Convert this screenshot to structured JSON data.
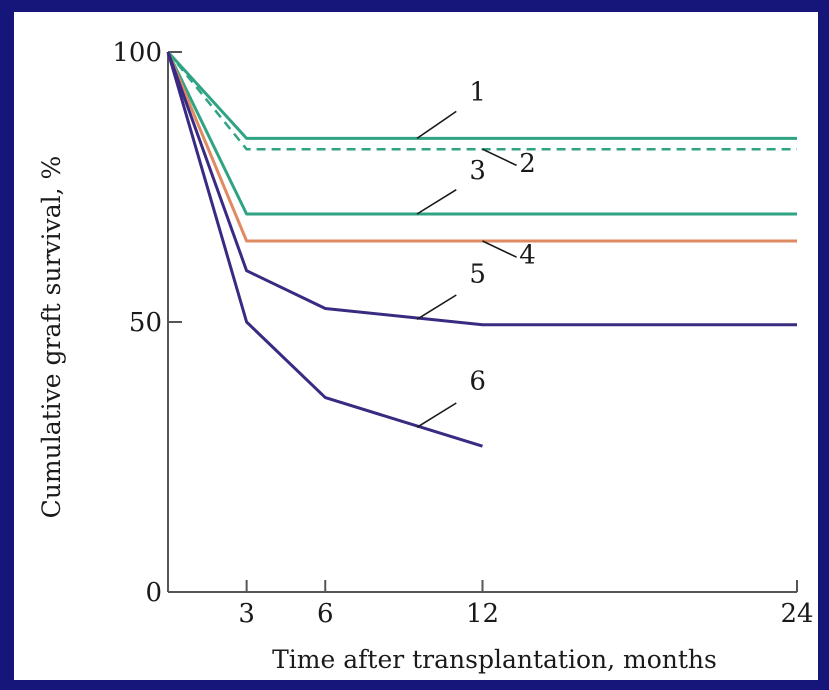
{
  "chart_data": {
    "type": "line",
    "title": "",
    "xlabel": "Time after transplantation, months",
    "ylabel": "Cumulative graft survival, %",
    "xlim": [
      0,
      24
    ],
    "ylim": [
      0,
      100
    ],
    "x_ticks": [
      3,
      6,
      12,
      24
    ],
    "y_ticks": [
      0,
      50,
      100
    ],
    "grid": false,
    "legend": "none",
    "series": [
      {
        "name": "1",
        "color": "#2fa383",
        "dash": "solid",
        "points": [
          [
            0,
            100
          ],
          [
            3,
            84
          ],
          [
            24,
            84
          ]
        ]
      },
      {
        "name": "2",
        "color": "#2fa383",
        "dash": "dashed",
        "points": [
          [
            0,
            100
          ],
          [
            3,
            82
          ],
          [
            24,
            82
          ]
        ]
      },
      {
        "name": "3",
        "color": "#2fa383",
        "dash": "solid",
        "points": [
          [
            0,
            100
          ],
          [
            3,
            70
          ],
          [
            24,
            70
          ]
        ]
      },
      {
        "name": "4",
        "color": "#e08a62",
        "dash": "solid",
        "points": [
          [
            0,
            100
          ],
          [
            3,
            65
          ],
          [
            24,
            65
          ]
        ]
      },
      {
        "name": "5",
        "color": "#3a2a82",
        "dash": "solid",
        "points": [
          [
            0,
            100
          ],
          [
            3,
            59.5
          ],
          [
            6,
            52.5
          ],
          [
            12,
            49.5
          ],
          [
            24,
            49.5
          ]
        ]
      },
      {
        "name": "6",
        "color": "#3a2a82",
        "dash": "solid",
        "points": [
          [
            0,
            100
          ],
          [
            3,
            50
          ],
          [
            6,
            36
          ],
          [
            12,
            27
          ]
        ]
      }
    ]
  }
}
